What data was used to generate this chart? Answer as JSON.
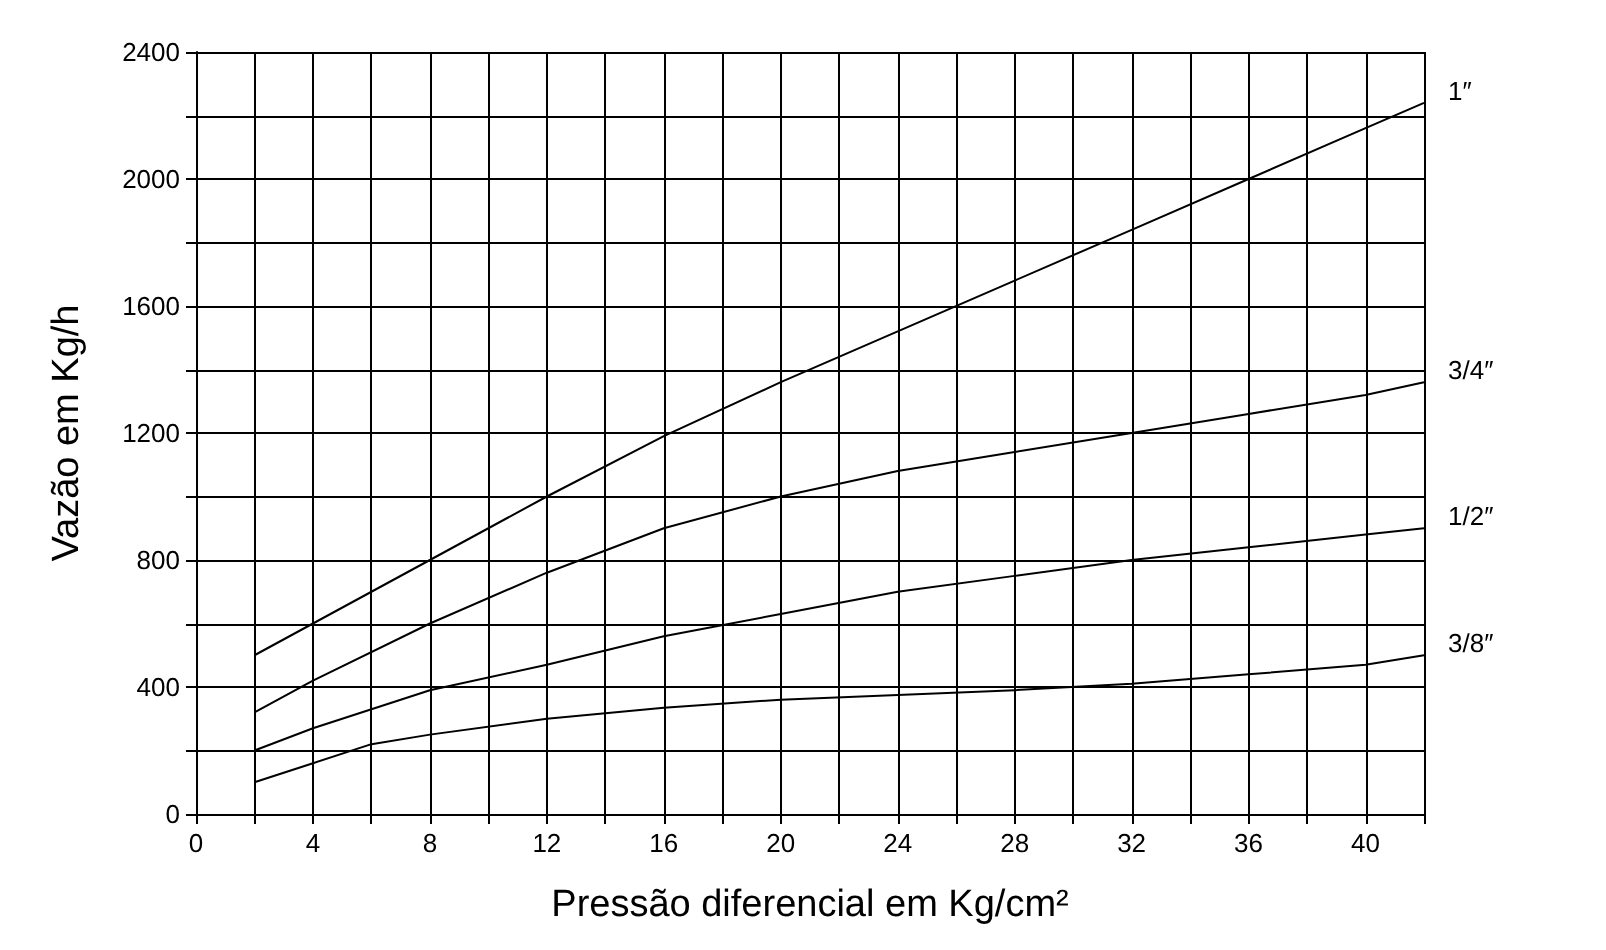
{
  "chart_data": {
    "type": "line",
    "xlabel": "Pressão diferencial em Kg/cm²",
    "ylabel": "Vazão em Kg/h",
    "xlim": [
      0,
      42
    ],
    "ylim": [
      0,
      2400
    ],
    "xticks": [
      0,
      {
        "value": 2,
        "label": null
      },
      4,
      {
        "value": 6,
        "label": null
      },
      8,
      {
        "value": 10,
        "label": null
      },
      12,
      {
        "value": 14,
        "label": null
      },
      16,
      {
        "value": 18,
        "label": null
      },
      20,
      {
        "value": 22,
        "label": null
      },
      24,
      {
        "value": 26,
        "label": null
      },
      28,
      {
        "value": 30,
        "label": null
      },
      32,
      {
        "value": 34,
        "label": null
      },
      36,
      {
        "value": 38,
        "label": null
      },
      40,
      {
        "value": 42,
        "label": null
      }
    ],
    "yticks": [
      0,
      {
        "value": 200,
        "label": null
      },
      400,
      {
        "value": 600,
        "label": null
      },
      800,
      {
        "value": 1000,
        "label": null
      },
      1200,
      {
        "value": 1400,
        "label": null
      },
      1600,
      {
        "value": 1800,
        "label": null
      },
      2000,
      {
        "value": 2200,
        "label": null
      },
      2400
    ],
    "grid": true,
    "legend": false,
    "line_style": "solid",
    "series": [
      {
        "name": "1″",
        "color": "#000000",
        "x": [
          2,
          4,
          8,
          12,
          16,
          20,
          24,
          28,
          32,
          36,
          40,
          42
        ],
        "values": [
          500,
          600,
          800,
          1000,
          1190,
          1360,
          1520,
          1680,
          1840,
          2000,
          2160,
          2240
        ]
      },
      {
        "name": "3/4″",
        "color": "#000000",
        "x": [
          2,
          4,
          8,
          12,
          16,
          20,
          24,
          28,
          32,
          36,
          40,
          42
        ],
        "values": [
          320,
          420,
          600,
          760,
          900,
          1000,
          1080,
          1140,
          1200,
          1260,
          1320,
          1360
        ]
      },
      {
        "name": "1/2″",
        "color": "#000000",
        "x": [
          2,
          4,
          8,
          12,
          16,
          20,
          24,
          28,
          32,
          36,
          40,
          42
        ],
        "values": [
          200,
          270,
          390,
          470,
          560,
          630,
          700,
          750,
          800,
          840,
          880,
          900
        ]
      },
      {
        "name": "3/8″",
        "color": "#000000",
        "x": [
          2,
          4,
          6,
          8,
          12,
          16,
          20,
          24,
          28,
          32,
          36,
          40,
          42
        ],
        "values": [
          100,
          160,
          220,
          250,
          300,
          335,
          360,
          375,
          390,
          410,
          440,
          470,
          500
        ]
      }
    ]
  }
}
